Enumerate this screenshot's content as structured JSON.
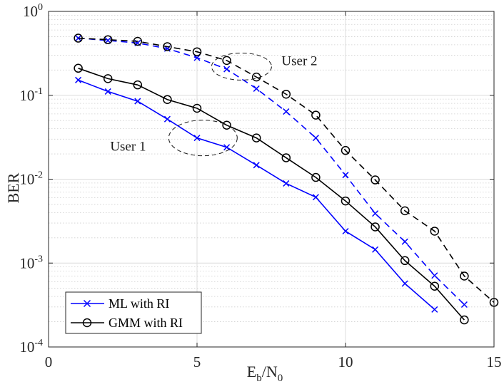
{
  "chart_data": {
    "type": "line",
    "yscale": "log",
    "xlabel": {
      "main": "E",
      "sub1": "b",
      "mid": "/N",
      "sub2": "0"
    },
    "ylabel": "BER",
    "xlim": [
      0,
      15
    ],
    "ylim": [
      0.0001,
      1
    ],
    "xticks": [
      0,
      5,
      10,
      15
    ],
    "xtick_labels": [
      "0",
      "5",
      "10",
      "15"
    ],
    "yticks": [
      {
        "value": 1,
        "base": "10",
        "exp": "0"
      },
      {
        "value": 0.1,
        "base": "10",
        "exp": "-1"
      },
      {
        "value": 0.01,
        "base": "10",
        "exp": "-2"
      },
      {
        "value": 0.001,
        "base": "10",
        "exp": "-3"
      },
      {
        "value": 0.0001,
        "base": "10",
        "exp": "-4"
      }
    ],
    "grid": true,
    "minor_grid": true,
    "legend_position": "bottom-left",
    "legend": [
      {
        "label": "ML with RI",
        "color": "#0000ff",
        "marker": "x"
      },
      {
        "label": "GMM with RI",
        "color": "#000000",
        "marker": "o"
      }
    ],
    "series": [
      {
        "name": "ML with RI - User 1",
        "color": "#0000ff",
        "marker": "x",
        "dash": "solid",
        "x": [
          1,
          2,
          3,
          4,
          5,
          6,
          7,
          8,
          9,
          10,
          11,
          12,
          13
        ],
        "y": [
          0.152,
          0.111,
          0.085,
          0.052,
          0.031,
          0.024,
          0.0147,
          0.0089,
          0.0061,
          0.0024,
          0.00145,
          0.00057,
          0.00028
        ]
      },
      {
        "name": "GMM with RI - User 1",
        "color": "#000000",
        "marker": "o",
        "dash": "solid",
        "x": [
          1,
          2,
          3,
          4,
          5,
          6,
          7,
          8,
          9,
          10,
          11,
          12,
          13,
          14
        ],
        "y": [
          0.21,
          0.158,
          0.133,
          0.089,
          0.07,
          0.044,
          0.031,
          0.018,
          0.0105,
          0.0055,
          0.0027,
          0.00107,
          0.00053,
          0.00021
        ]
      },
      {
        "name": "ML with RI - User 2",
        "color": "#0000ff",
        "marker": "x",
        "dash": "dashed",
        "x": [
          1,
          2,
          3,
          4,
          5,
          6,
          7,
          8,
          9,
          10,
          11,
          12,
          13,
          14
        ],
        "y": [
          0.48,
          0.45,
          0.42,
          0.36,
          0.28,
          0.205,
          0.12,
          0.064,
          0.031,
          0.0112,
          0.0039,
          0.0018,
          0.00071,
          0.00032
        ]
      },
      {
        "name": "GMM with RI - User 2",
        "color": "#000000",
        "marker": "o",
        "dash": "dashed",
        "x": [
          1,
          2,
          3,
          4,
          5,
          6,
          7,
          8,
          9,
          10,
          11,
          12,
          13,
          14,
          15
        ],
        "y": [
          0.48,
          0.46,
          0.44,
          0.38,
          0.33,
          0.26,
          0.165,
          0.103,
          0.058,
          0.022,
          0.0098,
          0.0042,
          0.0024,
          0.0007,
          0.00034
        ]
      }
    ],
    "annotations": [
      {
        "text": "User 1",
        "ellipse_center": [
          5.2,
          0.031
        ]
      },
      {
        "text": "User 2",
        "ellipse_center": [
          6.5,
          0.22
        ]
      }
    ]
  }
}
